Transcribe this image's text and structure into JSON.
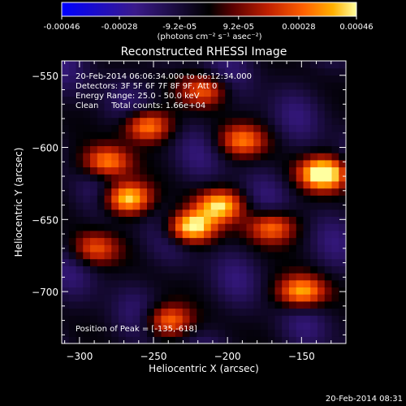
{
  "colorbar": {
    "tick_labels": [
      "-0.00046",
      "-0.00028",
      "-9.2e-05",
      "9.2e-05",
      "0.00028",
      "0.00046"
    ],
    "tick_values": [
      -0.00046,
      -0.00028,
      -9.2e-05,
      9.2e-05,
      0.00028,
      0.00046
    ],
    "range": [
      -0.00046,
      0.00046
    ],
    "units_label": "(photons cm⁻² s⁻¹ asec⁻²)",
    "colormap": [
      "#0000ff",
      "#3a1a8a",
      "#000000",
      "#5a0000",
      "#c02000",
      "#ff6000",
      "#ffb000",
      "#ffffa0"
    ]
  },
  "chart_data": {
    "type": "heatmap",
    "title": "Reconstructed RHESSI Image",
    "xlabel": "Heliocentric X (arcsec)",
    "ylabel": "Heliocentric Y (arcsec)",
    "xlim": [
      -312,
      -120
    ],
    "ylim": [
      -736,
      -540
    ],
    "x_ticks": [
      -300,
      -250,
      -200,
      -150
    ],
    "x_tick_labels": [
      "−300",
      "−250",
      "−200",
      "−150"
    ],
    "y_ticks": [
      -550,
      -600,
      -650,
      -700
    ],
    "y_tick_labels": [
      "−550",
      "−600",
      "−650",
      "−700"
    ],
    "grid": false,
    "annotations": [
      "20-Feb-2014 06:06:34.000 to 06:12:34.000",
      "Detectors: 3F 5F 6F 7F 8F 9F, Att 0",
      "Energy Range: 25.0 - 50.0 keV",
      "Clean     Total counts: 1.66e+04"
    ],
    "peak_label": "Position of Peak = [-135,-618]",
    "peak_position": [
      -135,
      -618
    ],
    "value_units": "photons cm^-2 s^-1 asec^-2",
    "sources": [
      {
        "x": -135,
        "y": -618,
        "value": 0.00046
      },
      {
        "x": -225,
        "y": -655,
        "value": 0.0004
      },
      {
        "x": -268,
        "y": -635,
        "value": 0.00036
      },
      {
        "x": -205,
        "y": -640,
        "value": 0.0003
      },
      {
        "x": -255,
        "y": -585,
        "value": 0.00028
      },
      {
        "x": -282,
        "y": -610,
        "value": 0.00024
      },
      {
        "x": -150,
        "y": -700,
        "value": 0.0003
      },
      {
        "x": -170,
        "y": -655,
        "value": 0.00022
      },
      {
        "x": -190,
        "y": -595,
        "value": 0.00018
      },
      {
        "x": -215,
        "y": -560,
        "value": 0.00016
      },
      {
        "x": -240,
        "y": -720,
        "value": 0.0002
      },
      {
        "x": -290,
        "y": -670,
        "value": 0.00014
      }
    ]
  },
  "footer": {
    "date": "20-Feb-2014 08:31"
  }
}
